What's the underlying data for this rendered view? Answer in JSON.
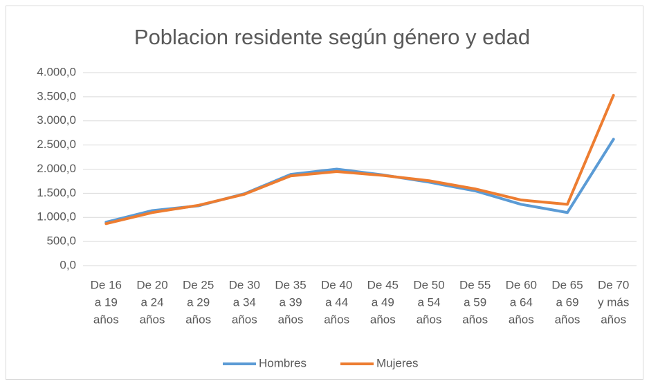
{
  "chart_data": {
    "type": "line",
    "title": "Poblacion residente según género y edad",
    "categories": [
      [
        "De 16",
        "a 19",
        "años"
      ],
      [
        "De 20",
        "a 24",
        "años"
      ],
      [
        "De 25",
        "a 29",
        "años"
      ],
      [
        "De 30",
        "a 34",
        "años"
      ],
      [
        "De 35",
        "a 39",
        "años"
      ],
      [
        "De 40",
        "a 44",
        "años"
      ],
      [
        "De 45",
        "a 49",
        "años"
      ],
      [
        "De 50",
        "a 54",
        "años"
      ],
      [
        "De 55",
        "a 59",
        "años"
      ],
      [
        "De 60",
        "a 64",
        "años"
      ],
      [
        "De 65",
        "a 69",
        "años"
      ],
      [
        "De 70",
        "y más",
        "años"
      ]
    ],
    "series": [
      {
        "name": "Hombres",
        "color": "#5b9bd5",
        "values": [
          900,
          1140,
          1240,
          1490,
          1890,
          2000,
          1880,
          1730,
          1550,
          1270,
          1100,
          2620
        ]
      },
      {
        "name": "Mujeres",
        "color": "#ed7d31",
        "values": [
          870,
          1100,
          1250,
          1480,
          1860,
          1950,
          1870,
          1760,
          1590,
          1360,
          1270,
          3530
        ]
      }
    ],
    "ylim": [
      0,
      4000
    ],
    "yticks": [
      {
        "value": 0,
        "label": "0,0"
      },
      {
        "value": 500,
        "label": "500,0"
      },
      {
        "value": 1000,
        "label": "1.000,0"
      },
      {
        "value": 1500,
        "label": "1.500,0"
      },
      {
        "value": 2000,
        "label": "2.000,0"
      },
      {
        "value": 2500,
        "label": "2.500,0"
      },
      {
        "value": 3000,
        "label": "3.000,0"
      },
      {
        "value": 3500,
        "label": "3.500,0"
      },
      {
        "value": 4000,
        "label": "4.000,0"
      }
    ],
    "grid": true,
    "legend": "bottom"
  }
}
